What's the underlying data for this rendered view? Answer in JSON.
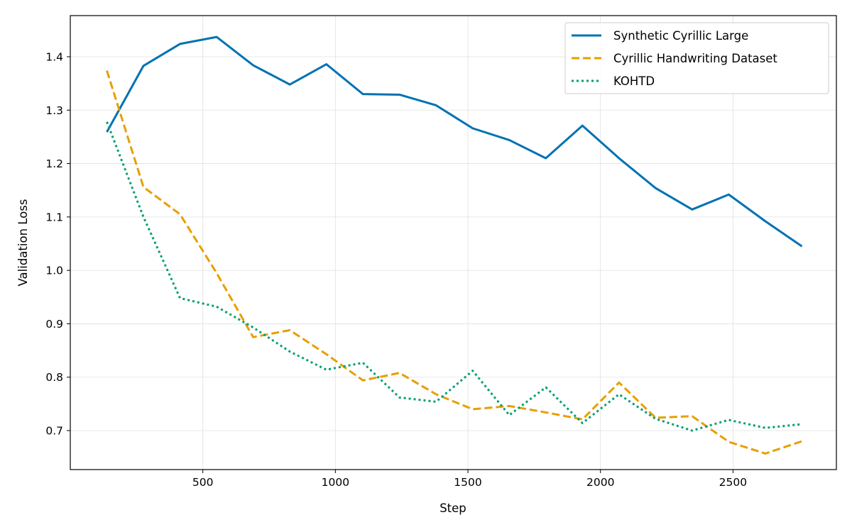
{
  "chart_data": {
    "type": "line",
    "title": "",
    "xlabel": "Step",
    "ylabel": "Validation Loss",
    "xlim": [
      0,
      2890
    ],
    "ylim": [
      0.627,
      1.477
    ],
    "xticks": [
      500,
      1000,
      1500,
      2000,
      2500
    ],
    "yticks": [
      0.7,
      0.8,
      0.9,
      1.0,
      1.1,
      1.2,
      1.3,
      1.4
    ],
    "ytick_labels": [
      "0.7",
      "0.8",
      "0.9",
      "1.0",
      "1.1",
      "1.2",
      "1.3",
      "1.4"
    ],
    "grid": true,
    "legend_position": "top-right",
    "x": [
      138,
      276,
      414,
      552,
      690,
      828,
      966,
      1104,
      1242,
      1380,
      1518,
      1656,
      1794,
      1932,
      2070,
      2208,
      2346,
      2484,
      2622,
      2760
    ],
    "series": [
      {
        "name": "Synthetic Cyrillic Large",
        "color": "#0072b2",
        "style": "solid",
        "values": [
          1.259,
          1.383,
          1.424,
          1.437,
          1.384,
          1.348,
          1.386,
          1.33,
          1.329,
          1.309,
          1.266,
          1.244,
          1.21,
          1.271,
          1.21,
          1.154,
          1.114,
          1.142,
          1.092,
          1.045
        ]
      },
      {
        "name": "Cyrillic Handwriting Dataset",
        "color": "#e69f00",
        "style": "dashed",
        "values": [
          1.374,
          1.156,
          1.105,
          0.995,
          0.875,
          0.888,
          0.843,
          0.794,
          0.808,
          0.768,
          0.74,
          0.746,
          0.734,
          0.721,
          0.79,
          0.724,
          0.727,
          0.679,
          0.657,
          0.68
        ]
      },
      {
        "name": "KOHTD",
        "color": "#009e73",
        "style": "dotted",
        "values": [
          1.278,
          1.1,
          0.948,
          0.932,
          0.893,
          0.848,
          0.814,
          0.827,
          0.762,
          0.754,
          0.812,
          0.729,
          0.781,
          0.714,
          0.768,
          0.722,
          0.7,
          0.72,
          0.705,
          0.712
        ]
      }
    ]
  }
}
